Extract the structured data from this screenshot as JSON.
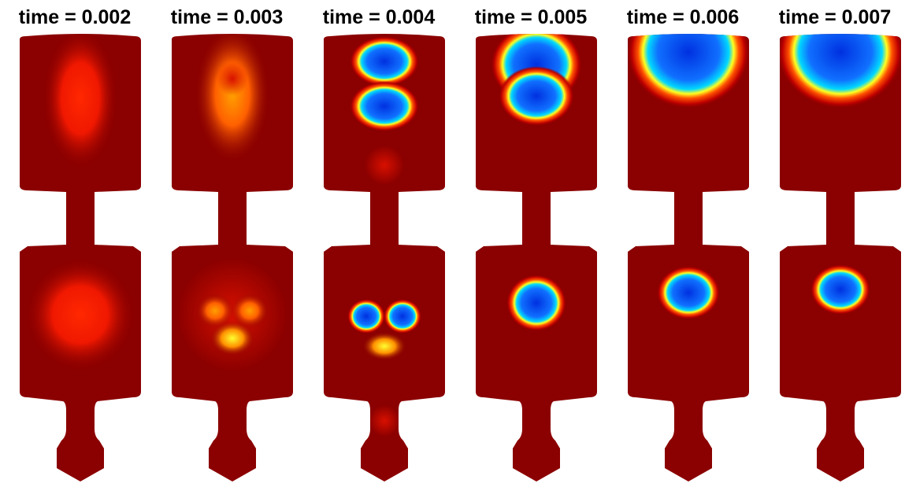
{
  "panels": [
    {
      "title": "time = 0.002"
    },
    {
      "title": "time = 0.003"
    },
    {
      "title": "time = 0.004"
    },
    {
      "title": "time = 0.005"
    },
    {
      "title": "time = 0.006"
    },
    {
      "title": "time = 0.007"
    }
  ]
}
